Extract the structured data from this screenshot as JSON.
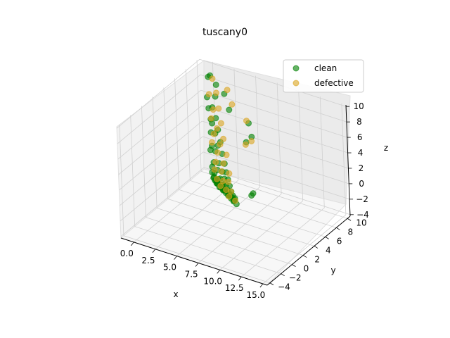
{
  "chart_data": {
    "type": "scatter",
    "projection": "3d",
    "title": "tuscany0",
    "xlabel": "x",
    "ylabel": "y",
    "zlabel": "z",
    "xlim": [
      -1.5,
      15.5
    ],
    "ylim": [
      -4.5,
      10.5
    ],
    "zlim": [
      -4.2,
      10.2
    ],
    "xticks": [
      "0.0",
      "2.5",
      "5.0",
      "7.5",
      "10.0",
      "12.5",
      "15.0"
    ],
    "yticks": [
      "−4",
      "−2",
      "0",
      "2",
      "4",
      "6",
      "8",
      "10"
    ],
    "zticks": [
      "−4",
      "−2",
      "0",
      "2",
      "4",
      "6",
      "8",
      "10"
    ],
    "grid": true,
    "legend_position": "top-right",
    "series": [
      {
        "name": "clean",
        "color": "#008000",
        "alpha": 0.6,
        "points": [
          [
            0.5,
            9.2,
            9.4
          ],
          [
            0.9,
            9.6,
            8.1
          ],
          [
            1.3,
            8.8,
            7.2
          ],
          [
            0.2,
            9.0,
            6.6
          ],
          [
            1.1,
            8.5,
            5.9
          ],
          [
            0.4,
            8.9,
            5.3
          ],
          [
            1.6,
            8.3,
            4.8
          ],
          [
            0.8,
            8.6,
            4.2
          ],
          [
            2.0,
            8.0,
            3.6
          ],
          [
            0.6,
            9.1,
            3.3
          ],
          [
            1.4,
            8.4,
            2.7
          ],
          [
            2.3,
            7.9,
            2.2
          ],
          [
            0.3,
            9.3,
            1.9
          ],
          [
            1.8,
            8.2,
            1.4
          ],
          [
            2.6,
            7.7,
            0.9
          ],
          [
            0.7,
            8.8,
            0.6
          ],
          [
            1.2,
            8.6,
            0.2
          ],
          [
            2.9,
            7.6,
            -0.2
          ],
          [
            0.1,
            9.4,
            -0.5
          ],
          [
            1.9,
            8.1,
            -0.8
          ],
          [
            3.2,
            7.4,
            -1.1
          ],
          [
            0.9,
            8.7,
            -1.4
          ],
          [
            2.4,
            7.9,
            -1.6
          ],
          [
            3.5,
            7.2,
            -1.8
          ],
          [
            1.5,
            8.4,
            -2.0
          ],
          [
            2.8,
            7.6,
            -2.2
          ],
          [
            0.5,
            9.0,
            -2.3
          ],
          [
            3.8,
            7.0,
            -2.4
          ],
          [
            2.1,
            7.9,
            -2.6
          ],
          [
            1.0,
            8.6,
            -2.7
          ],
          [
            3.1,
            7.4,
            -2.8
          ],
          [
            4.1,
            6.8,
            -2.9
          ],
          [
            1.7,
            8.2,
            -3.0
          ],
          [
            2.6,
            7.7,
            -3.1
          ],
          [
            0.4,
            9.1,
            -3.1
          ],
          [
            3.4,
            7.2,
            -3.2
          ],
          [
            4.4,
            6.6,
            -3.2
          ],
          [
            1.3,
            8.5,
            -3.3
          ],
          [
            2.3,
            7.9,
            -3.3
          ],
          [
            3.7,
            7.0,
            -3.4
          ],
          [
            0.8,
            8.8,
            -3.4
          ],
          [
            4.7,
            6.5,
            -3.4
          ],
          [
            1.9,
            8.1,
            -3.5
          ],
          [
            2.9,
            7.5,
            -3.5
          ],
          [
            3.9,
            6.9,
            -3.5
          ],
          [
            1.1,
            8.6,
            -3.6
          ],
          [
            2.2,
            8.0,
            -3.6
          ],
          [
            3.3,
            7.3,
            -3.6
          ],
          [
            4.3,
            6.7,
            -3.6
          ],
          [
            0.6,
            9.0,
            -3.7
          ],
          [
            1.6,
            8.3,
            -3.7
          ],
          [
            2.7,
            7.6,
            -3.7
          ],
          [
            3.6,
            7.1,
            -3.7
          ],
          [
            4.6,
            6.6,
            -3.7
          ],
          [
            1.4,
            8.4,
            -3.8
          ],
          [
            2.5,
            7.8,
            -3.8
          ],
          [
            3.5,
            7.2,
            -3.8
          ],
          [
            4.5,
            6.6,
            -3.8
          ],
          [
            0.9,
            8.8,
            -3.8
          ],
          [
            2.0,
            8.1,
            -3.9
          ],
          [
            3.0,
            7.5,
            -3.9
          ],
          [
            4.0,
            6.9,
            -3.9
          ],
          [
            5.0,
            6.3,
            -3.9
          ],
          [
            1.2,
            8.6,
            -3.9
          ],
          [
            2.4,
            7.9,
            -4.0
          ],
          [
            3.4,
            7.3,
            -4.0
          ],
          [
            4.4,
            6.7,
            -4.0
          ],
          [
            1.8,
            8.2,
            -4.0
          ],
          [
            5.5,
            8.2,
            5.6
          ],
          [
            6.0,
            7.9,
            4.2
          ],
          [
            5.2,
            8.1,
            3.1
          ],
          [
            6.2,
            7.5,
            -2.8
          ],
          [
            5.8,
            7.8,
            -3.4
          ],
          [
            0.0,
            9.6,
            8.8
          ],
          [
            2.1,
            9.2,
            7.6
          ],
          [
            3.0,
            8.6,
            6.2
          ]
        ]
      },
      {
        "name": "defective",
        "color": "#DAA520",
        "alpha": 0.6,
        "points": [
          [
            0.7,
            9.3,
            9.0
          ],
          [
            1.5,
            8.7,
            7.8
          ],
          [
            0.3,
            9.2,
            6.9
          ],
          [
            1.9,
            8.4,
            6.1
          ],
          [
            1.0,
            8.8,
            5.4
          ],
          [
            2.4,
            8.0,
            4.6
          ],
          [
            0.6,
            9.0,
            4.0
          ],
          [
            1.7,
            8.3,
            3.5
          ],
          [
            2.8,
            7.7,
            2.9
          ],
          [
            1.1,
            8.6,
            2.4
          ],
          [
            2.2,
            8.0,
            1.8
          ],
          [
            3.3,
            7.4,
            1.2
          ],
          [
            0.5,
            9.1,
            0.8
          ],
          [
            1.6,
            8.4,
            0.3
          ],
          [
            2.7,
            7.7,
            -0.3
          ],
          [
            3.8,
            7.0,
            -0.8
          ],
          [
            1.2,
            8.6,
            -1.2
          ],
          [
            2.3,
            7.9,
            -1.6
          ],
          [
            3.6,
            7.1,
            -2.0
          ],
          [
            0.9,
            8.8,
            -2.4
          ],
          [
            2.5,
            7.8,
            -2.7
          ],
          [
            4.0,
            6.9,
            -3.0
          ],
          [
            1.4,
            8.4,
            -3.2
          ],
          [
            3.1,
            7.4,
            -3.4
          ],
          [
            4.8,
            6.4,
            -3.6
          ],
          [
            2.0,
            8.1,
            -3.7
          ],
          [
            3.7,
            7.0,
            -3.8
          ],
          [
            5.4,
            8.0,
            6.0
          ],
          [
            6.1,
            7.7,
            3.8
          ],
          [
            5.0,
            8.3,
            2.6
          ],
          [
            3.5,
            8.4,
            7.2
          ],
          [
            2.6,
            9.0,
            8.4
          ]
        ]
      }
    ]
  }
}
